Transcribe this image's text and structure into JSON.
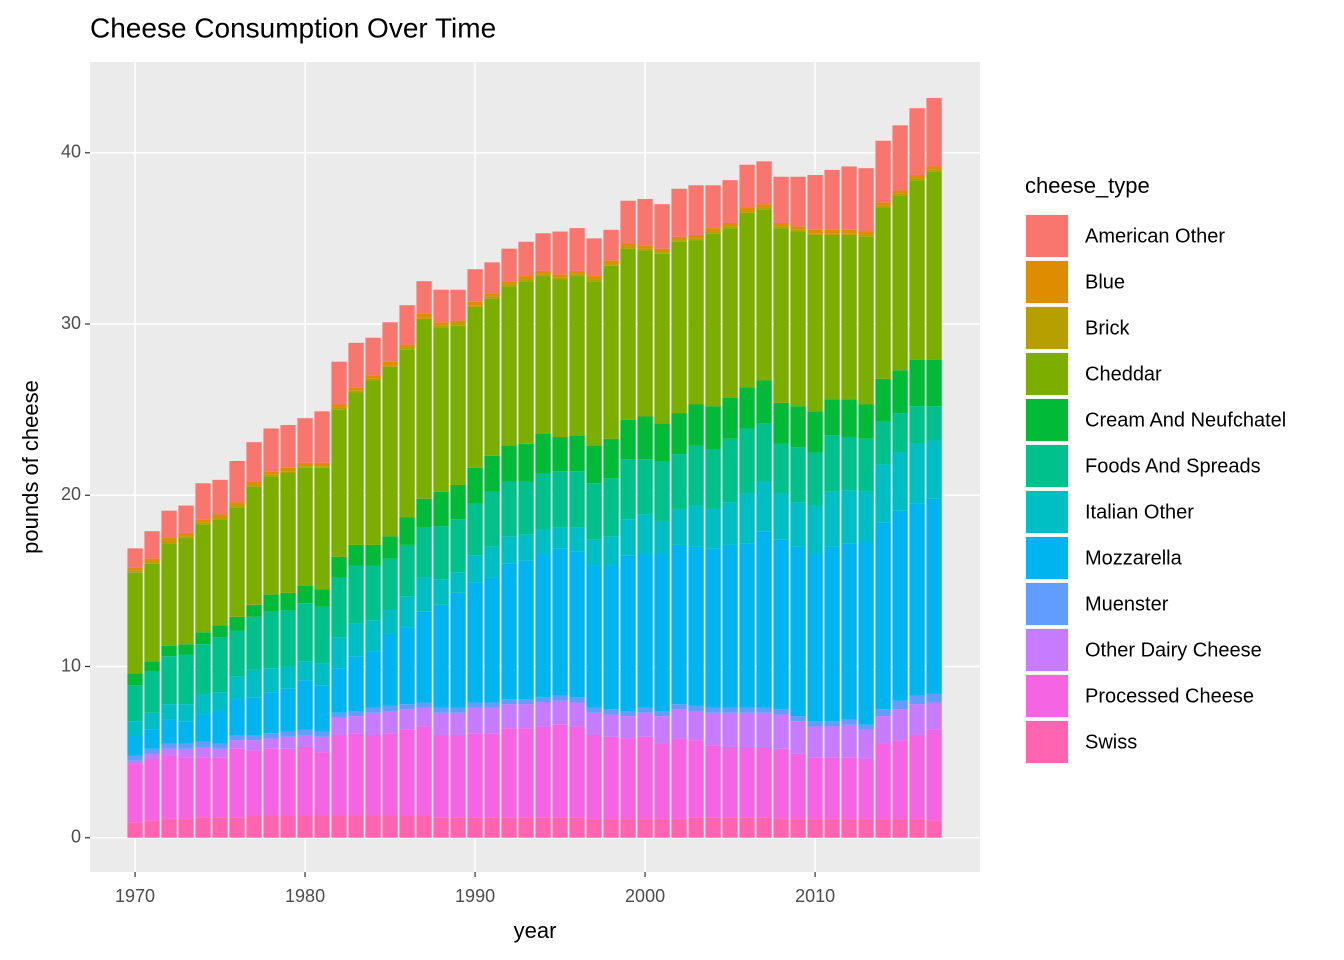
{
  "chart_data": {
    "type": "bar",
    "stacked": true,
    "title": "Cheese Consumption Over Time",
    "xlabel": "year",
    "ylabel": "pounds of cheese",
    "legend_title": "cheese_type",
    "legend": "right",
    "grid": true,
    "x": [
      1970,
      1971,
      1972,
      1973,
      1974,
      1975,
      1976,
      1977,
      1978,
      1979,
      1980,
      1981,
      1982,
      1983,
      1984,
      1985,
      1986,
      1987,
      1988,
      1989,
      1990,
      1991,
      1992,
      1993,
      1994,
      1995,
      1996,
      1997,
      1998,
      1999,
      2000,
      2001,
      2002,
      2003,
      2004,
      2005,
      2006,
      2007,
      2008,
      2009,
      2010,
      2011,
      2012,
      2013,
      2014,
      2015,
      2016,
      2017
    ],
    "xlim": [
      1967.35,
      2019.7
    ],
    "xticks": [
      1970,
      1980,
      1990,
      2000,
      2010
    ],
    "ylim": [
      -2,
      45.3
    ],
    "yticks": [
      0,
      10,
      20,
      30,
      40
    ],
    "series": [
      {
        "name": "American Other",
        "color": "#F8766D",
        "values": [
          1.1,
          1.6,
          1.6,
          1.6,
          2.1,
          2.0,
          2.4,
          2.3,
          2.5,
          2.5,
          2.6,
          3.0,
          2.5,
          2.6,
          2.2,
          2.3,
          2.3,
          1.9,
          1.9,
          1.8,
          1.9,
          1.8,
          1.9,
          2.0,
          2.2,
          2.5,
          2.5,
          2.2,
          1.8,
          2.5,
          2.7,
          2.6,
          2.8,
          2.9,
          2.5,
          2.5,
          2.5,
          2.5,
          2.7,
          2.9,
          3.2,
          3.5,
          3.7,
          3.7,
          3.6,
          3.8,
          3.9,
          4.0
        ]
      },
      {
        "name": "Blue",
        "color": "#DE8C00",
        "values": [
          0.2,
          0.2,
          0.2,
          0.2,
          0.2,
          0.2,
          0.2,
          0.2,
          0.2,
          0.2,
          0.2,
          0.2,
          0.2,
          0.2,
          0.2,
          0.2,
          0.2,
          0.2,
          0.2,
          0.2,
          0.2,
          0.2,
          0.2,
          0.2,
          0.2,
          0.2,
          0.2,
          0.2,
          0.2,
          0.2,
          0.2,
          0.2,
          0.2,
          0.2,
          0.2,
          0.2,
          0.2,
          0.2,
          0.2,
          0.2,
          0.2,
          0.2,
          0.2,
          0.2,
          0.2,
          0.2,
          0.2,
          0.2
        ]
      },
      {
        "name": "Brick",
        "color": "#B79F00",
        "values": [
          0.1,
          0.1,
          0.1,
          0.1,
          0.1,
          0.1,
          0.1,
          0.1,
          0.1,
          0.1,
          0.1,
          0.1,
          0.1,
          0.1,
          0.1,
          0.1,
          0.1,
          0.1,
          0.1,
          0.1,
          0.1,
          0.1,
          0.1,
          0.1,
          0.1,
          0.1,
          0.1,
          0.1,
          0.1,
          0.1,
          0.1,
          0.1,
          0.1,
          0.1,
          0.1,
          0.1,
          0.1,
          0.1,
          0.1,
          0.1,
          0.1,
          0.1,
          0.1,
          0.1,
          0.1,
          0.1,
          0.1,
          0.1
        ]
      },
      {
        "name": "Cheddar",
        "color": "#7CAE00",
        "values": [
          5.9,
          5.7,
          6.0,
          6.2,
          6.3,
          6.2,
          6.4,
          6.9,
          6.9,
          7.0,
          6.9,
          7.1,
          8.6,
          8.9,
          9.6,
          9.9,
          9.8,
          10.5,
          9.6,
          9.3,
          9.4,
          9.2,
          9.3,
          9.5,
          9.2,
          9.2,
          9.3,
          9.6,
          10.1,
          10.0,
          9.7,
          9.9,
          10.0,
          9.6,
          10.1,
          9.9,
          10.2,
          10.0,
          10.2,
          10.2,
          10.3,
          9.6,
          9.6,
          9.8,
          10.0,
          10.2,
          10.5,
          11.0
        ]
      },
      {
        "name": "Cream And Neufchatel",
        "color": "#00BA38",
        "values": [
          0.7,
          0.6,
          0.6,
          0.6,
          0.7,
          0.7,
          0.8,
          0.7,
          1.0,
          1.0,
          1.0,
          1.0,
          1.2,
          1.2,
          1.2,
          1.3,
          1.6,
          1.7,
          2.0,
          2.0,
          2.1,
          2.1,
          2.1,
          2.2,
          2.3,
          2.0,
          2.1,
          2.2,
          2.3,
          2.3,
          2.5,
          2.2,
          2.4,
          2.4,
          2.5,
          2.4,
          2.4,
          2.5,
          2.4,
          2.4,
          2.4,
          2.1,
          2.2,
          2.0,
          2.5,
          2.5,
          2.7,
          2.7
        ]
      },
      {
        "name": "Foods And Spreads",
        "color": "#00C08B",
        "values": [
          2.1,
          2.4,
          2.8,
          2.9,
          2.9,
          3.2,
          2.7,
          3.1,
          3.3,
          3.3,
          3.4,
          3.3,
          3.5,
          3.4,
          3.2,
          3.0,
          3.0,
          2.9,
          3.1,
          3.1,
          3.0,
          3.2,
          3.2,
          3.1,
          3.3,
          3.3,
          3.3,
          3.3,
          3.4,
          3.5,
          3.2,
          3.5,
          3.2,
          3.5,
          3.5,
          3.7,
          3.8,
          3.4,
          2.9,
          3.2,
          3.1,
          3.3,
          3.1,
          3.1,
          2.5,
          2.3,
          2.2,
          2.0
        ]
      },
      {
        "name": "Italian Other",
        "color": "#00BFC4",
        "values": [
          0.8,
          1.0,
          0.9,
          1.0,
          1.2,
          1.1,
          1.3,
          1.6,
          1.4,
          1.3,
          1.1,
          1.3,
          1.8,
          1.9,
          1.8,
          1.4,
          1.8,
          2.0,
          1.5,
          1.2,
          1.6,
          1.8,
          1.6,
          1.5,
          1.4,
          1.2,
          1.4,
          1.5,
          1.7,
          2.1,
          2.3,
          1.9,
          2.1,
          2.4,
          2.3,
          2.5,
          2.9,
          2.9,
          2.7,
          2.6,
          2.8,
          3.2,
          3.1,
          2.9,
          3.4,
          3.4,
          3.5,
          3.4
        ]
      },
      {
        "name": "Mozzarella",
        "color": "#00B4F0",
        "values": [
          1.2,
          1.1,
          1.4,
          1.3,
          1.6,
          1.9,
          2.1,
          2.2,
          2.4,
          2.5,
          2.9,
          2.7,
          2.6,
          3.2,
          3.3,
          4.2,
          4.5,
          5.3,
          6.0,
          6.7,
          7.0,
          7.3,
          7.9,
          8.1,
          8.4,
          8.6,
          8.5,
          8.3,
          8.4,
          9.1,
          9.0,
          9.2,
          9.3,
          9.3,
          9.3,
          9.5,
          9.6,
          10.3,
          9.9,
          9.9,
          9.8,
          10.2,
          10.3,
          10.7,
          10.9,
          11.1,
          11.2,
          11.4
        ]
      },
      {
        "name": "Muenster",
        "color": "#619CFF",
        "values": [
          0.3,
          0.3,
          0.3,
          0.3,
          0.3,
          0.3,
          0.3,
          0.3,
          0.3,
          0.3,
          0.3,
          0.3,
          0.3,
          0.3,
          0.3,
          0.3,
          0.3,
          0.3,
          0.3,
          0.3,
          0.3,
          0.3,
          0.3,
          0.3,
          0.3,
          0.3,
          0.3,
          0.3,
          0.3,
          0.3,
          0.3,
          0.3,
          0.3,
          0.3,
          0.3,
          0.3,
          0.3,
          0.3,
          0.3,
          0.3,
          0.3,
          0.3,
          0.3,
          0.3,
          0.4,
          0.5,
          0.5,
          0.5
        ]
      },
      {
        "name": "Other Dairy Cheese",
        "color": "#C77CFF",
        "values": [
          0.2,
          0.3,
          0.4,
          0.5,
          0.6,
          0.5,
          0.5,
          0.6,
          0.6,
          0.7,
          0.7,
          0.9,
          1.0,
          1.0,
          1.3,
          1.3,
          1.2,
          1.1,
          1.3,
          1.3,
          1.5,
          1.5,
          1.4,
          1.4,
          1.4,
          1.4,
          1.4,
          1.3,
          1.3,
          1.3,
          1.4,
          1.6,
          1.7,
          1.7,
          1.9,
          2.0,
          2.0,
          2.0,
          2.0,
          1.9,
          1.8,
          1.8,
          1.9,
          1.7,
          1.6,
          1.8,
          1.8,
          1.6
        ]
      },
      {
        "name": "Processed Cheese",
        "color": "#F564E3",
        "values": [
          3.4,
          3.6,
          3.7,
          3.6,
          3.5,
          3.5,
          4.0,
          3.8,
          3.9,
          3.9,
          4.0,
          3.7,
          4.7,
          4.8,
          4.7,
          4.8,
          5.0,
          5.2,
          4.8,
          4.8,
          4.9,
          4.9,
          5.2,
          5.2,
          5.3,
          5.4,
          5.3,
          4.9,
          4.8,
          4.7,
          4.8,
          4.4,
          4.7,
          4.5,
          4.2,
          4.1,
          4.1,
          4.1,
          4.1,
          3.8,
          3.6,
          3.6,
          3.6,
          3.5,
          4.4,
          4.6,
          4.9,
          5.3
        ]
      },
      {
        "name": "Swiss",
        "color": "#FF64B0",
        "values": [
          0.9,
          1.0,
          1.1,
          1.1,
          1.2,
          1.2,
          1.2,
          1.3,
          1.3,
          1.3,
          1.3,
          1.3,
          1.3,
          1.3,
          1.3,
          1.3,
          1.3,
          1.3,
          1.2,
          1.2,
          1.2,
          1.2,
          1.2,
          1.2,
          1.2,
          1.2,
          1.2,
          1.1,
          1.1,
          1.1,
          1.1,
          1.1,
          1.1,
          1.2,
          1.2,
          1.2,
          1.2,
          1.2,
          1.1,
          1.1,
          1.1,
          1.1,
          1.1,
          1.1,
          1.1,
          1.1,
          1.1,
          1.0
        ]
      }
    ]
  }
}
